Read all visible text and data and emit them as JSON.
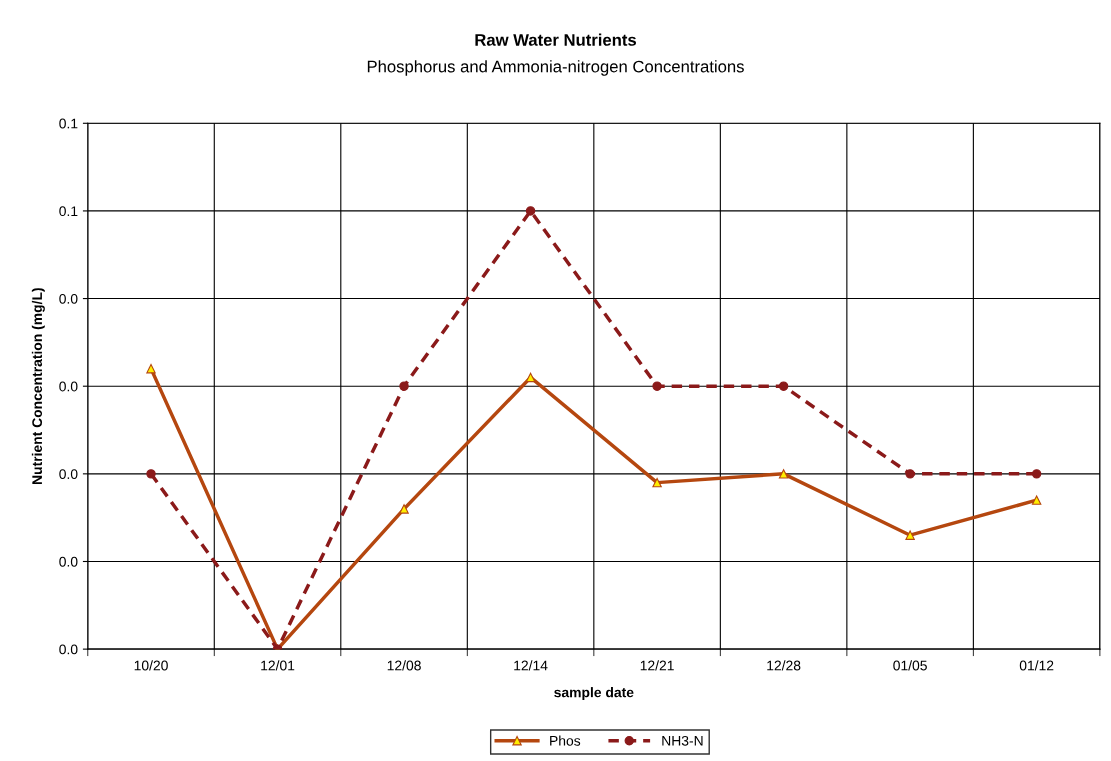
{
  "chart_data": {
    "type": "line",
    "title": "Raw Water Nutrients",
    "subtitle": "Phosphorus and Ammonia-nitrogen Concentrations",
    "xlabel": "sample date",
    "ylabel": "Nutrient Concentration (mg/L)",
    "categories": [
      "10/20",
      "12/01",
      "12/08",
      "12/14",
      "12/21",
      "12/28",
      "01/05",
      "01/12"
    ],
    "series": [
      {
        "name": "Phos",
        "color": "#b5470f",
        "values": [
          0.032,
          0,
          0.016,
          0.031,
          0.019,
          0.02,
          0.013,
          0.017
        ],
        "marker": "triangle",
        "line_style": "solid"
      },
      {
        "name": "NH3-N",
        "color": "#8b1a1a",
        "values": [
          0.02,
          0,
          0.03,
          0.05,
          0.03,
          0.03,
          0.02,
          0.02
        ],
        "marker": "circle",
        "line_style": "dashed"
      }
    ],
    "ylim": [
      0,
      0.06
    ],
    "yticks": [
      {
        "value": 0,
        "label": "0.0"
      },
      {
        "value": 0.01,
        "label": "0.0"
      },
      {
        "value": 0.02,
        "label": "0.0"
      },
      {
        "value": 0.03,
        "label": "0.0"
      },
      {
        "value": 0.04,
        "label": "0.0"
      },
      {
        "value": 0.05,
        "label": "0.1"
      },
      {
        "value": 0.06,
        "label": "0.1"
      }
    ],
    "grid": true,
    "legend": "bottom"
  }
}
